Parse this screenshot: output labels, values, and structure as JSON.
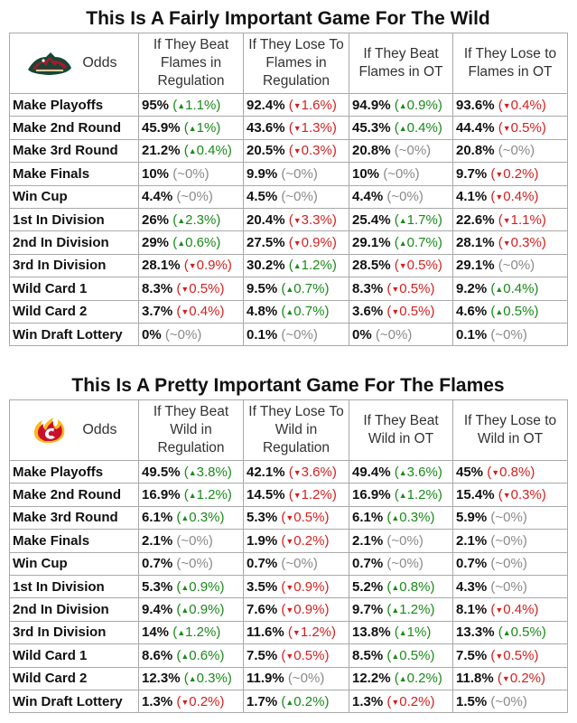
{
  "tables": [
    {
      "title": "This Is A Fairly Important Game For The Wild",
      "logo": "minnesota-wild-logo",
      "odds_label": "Odds",
      "columns": [
        "If They Beat Flames in Regulation",
        "If They Lose To Flames in Regulation",
        "If They Beat Flames in OT",
        "If They Lose to Flames in OT"
      ],
      "rows": [
        {
          "label": "Make Playoffs",
          "cells": [
            {
              "pct": "95%",
              "chg": "1.1%",
              "dir": "up"
            },
            {
              "pct": "92.4%",
              "chg": "1.6%",
              "dir": "down"
            },
            {
              "pct": "94.9%",
              "chg": "0.9%",
              "dir": "up"
            },
            {
              "pct": "93.6%",
              "chg": "0.4%",
              "dir": "down"
            }
          ]
        },
        {
          "label": "Make 2nd Round",
          "cells": [
            {
              "pct": "45.9%",
              "chg": "1%",
              "dir": "up"
            },
            {
              "pct": "43.6%",
              "chg": "1.3%",
              "dir": "down"
            },
            {
              "pct": "45.3%",
              "chg": "0.4%",
              "dir": "up"
            },
            {
              "pct": "44.4%",
              "chg": "0.5%",
              "dir": "down"
            }
          ]
        },
        {
          "label": "Make 3rd Round",
          "cells": [
            {
              "pct": "21.2%",
              "chg": "0.4%",
              "dir": "up"
            },
            {
              "pct": "20.5%",
              "chg": "0.3%",
              "dir": "down"
            },
            {
              "pct": "20.8%",
              "chg": "~0%",
              "dir": "flat"
            },
            {
              "pct": "20.8%",
              "chg": "~0%",
              "dir": "flat"
            }
          ]
        },
        {
          "label": "Make Finals",
          "cells": [
            {
              "pct": "10%",
              "chg": "~0%",
              "dir": "flat"
            },
            {
              "pct": "9.9%",
              "chg": "~0%",
              "dir": "flat"
            },
            {
              "pct": "10%",
              "chg": "~0%",
              "dir": "flat"
            },
            {
              "pct": "9.7%",
              "chg": "0.2%",
              "dir": "down"
            }
          ]
        },
        {
          "label": "Win Cup",
          "cells": [
            {
              "pct": "4.4%",
              "chg": "~0%",
              "dir": "flat"
            },
            {
              "pct": "4.5%",
              "chg": "~0%",
              "dir": "flat"
            },
            {
              "pct": "4.4%",
              "chg": "~0%",
              "dir": "flat"
            },
            {
              "pct": "4.1%",
              "chg": "0.4%",
              "dir": "down"
            }
          ]
        },
        {
          "label": "1st In Division",
          "cells": [
            {
              "pct": "26%",
              "chg": "2.3%",
              "dir": "up"
            },
            {
              "pct": "20.4%",
              "chg": "3.3%",
              "dir": "down"
            },
            {
              "pct": "25.4%",
              "chg": "1.7%",
              "dir": "up"
            },
            {
              "pct": "22.6%",
              "chg": "1.1%",
              "dir": "down"
            }
          ]
        },
        {
          "label": "2nd In Division",
          "cells": [
            {
              "pct": "29%",
              "chg": "0.6%",
              "dir": "up"
            },
            {
              "pct": "27.5%",
              "chg": "0.9%",
              "dir": "down"
            },
            {
              "pct": "29.1%",
              "chg": "0.7%",
              "dir": "up"
            },
            {
              "pct": "28.1%",
              "chg": "0.3%",
              "dir": "down"
            }
          ]
        },
        {
          "label": "3rd In Division",
          "cells": [
            {
              "pct": "28.1%",
              "chg": "0.9%",
              "dir": "down"
            },
            {
              "pct": "30.2%",
              "chg": "1.2%",
              "dir": "up"
            },
            {
              "pct": "28.5%",
              "chg": "0.5%",
              "dir": "down"
            },
            {
              "pct": "29.1%",
              "chg": "~0%",
              "dir": "flat"
            }
          ]
        },
        {
          "label": "Wild Card 1",
          "cells": [
            {
              "pct": "8.3%",
              "chg": "0.5%",
              "dir": "down"
            },
            {
              "pct": "9.5%",
              "chg": "0.7%",
              "dir": "up"
            },
            {
              "pct": "8.3%",
              "chg": "0.5%",
              "dir": "down"
            },
            {
              "pct": "9.2%",
              "chg": "0.4%",
              "dir": "up"
            }
          ]
        },
        {
          "label": "Wild Card 2",
          "cells": [
            {
              "pct": "3.7%",
              "chg": "0.4%",
              "dir": "down"
            },
            {
              "pct": "4.8%",
              "chg": "0.7%",
              "dir": "up"
            },
            {
              "pct": "3.6%",
              "chg": "0.5%",
              "dir": "down"
            },
            {
              "pct": "4.6%",
              "chg": "0.5%",
              "dir": "up"
            }
          ]
        },
        {
          "label": "Win Draft Lottery",
          "cells": [
            {
              "pct": "0%",
              "chg": "~0%",
              "dir": "flat"
            },
            {
              "pct": "0.1%",
              "chg": "~0%",
              "dir": "flat"
            },
            {
              "pct": "0%",
              "chg": "~0%",
              "dir": "flat"
            },
            {
              "pct": "0.1%",
              "chg": "~0%",
              "dir": "flat"
            }
          ]
        }
      ]
    },
    {
      "title": "This Is A Pretty Important Game For The Flames",
      "logo": "calgary-flames-logo",
      "odds_label": "Odds",
      "columns": [
        "If They Beat Wild in Regulation",
        "If They Lose To Wild in Regulation",
        "If They Beat Wild in OT",
        "If They Lose to Wild in OT"
      ],
      "rows": [
        {
          "label": "Make Playoffs",
          "cells": [
            {
              "pct": "49.5%",
              "chg": "3.8%",
              "dir": "up"
            },
            {
              "pct": "42.1%",
              "chg": "3.6%",
              "dir": "down"
            },
            {
              "pct": "49.4%",
              "chg": "3.6%",
              "dir": "up"
            },
            {
              "pct": "45%",
              "chg": "0.8%",
              "dir": "down"
            }
          ]
        },
        {
          "label": "Make 2nd Round",
          "cells": [
            {
              "pct": "16.9%",
              "chg": "1.2%",
              "dir": "up"
            },
            {
              "pct": "14.5%",
              "chg": "1.2%",
              "dir": "down"
            },
            {
              "pct": "16.9%",
              "chg": "1.2%",
              "dir": "up"
            },
            {
              "pct": "15.4%",
              "chg": "0.3%",
              "dir": "down"
            }
          ]
        },
        {
          "label": "Make 3rd Round",
          "cells": [
            {
              "pct": "6.1%",
              "chg": "0.3%",
              "dir": "up"
            },
            {
              "pct": "5.3%",
              "chg": "0.5%",
              "dir": "down"
            },
            {
              "pct": "6.1%",
              "chg": "0.3%",
              "dir": "up"
            },
            {
              "pct": "5.9%",
              "chg": "~0%",
              "dir": "flat"
            }
          ]
        },
        {
          "label": "Make Finals",
          "cells": [
            {
              "pct": "2.1%",
              "chg": "~0%",
              "dir": "flat"
            },
            {
              "pct": "1.9%",
              "chg": "0.2%",
              "dir": "down"
            },
            {
              "pct": "2.1%",
              "chg": "~0%",
              "dir": "flat"
            },
            {
              "pct": "2.1%",
              "chg": "~0%",
              "dir": "flat"
            }
          ]
        },
        {
          "label": "Win Cup",
          "cells": [
            {
              "pct": "0.7%",
              "chg": "~0%",
              "dir": "flat"
            },
            {
              "pct": "0.7%",
              "chg": "~0%",
              "dir": "flat"
            },
            {
              "pct": "0.7%",
              "chg": "~0%",
              "dir": "flat"
            },
            {
              "pct": "0.7%",
              "chg": "~0%",
              "dir": "flat"
            }
          ]
        },
        {
          "label": "1st In Division",
          "cells": [
            {
              "pct": "5.3%",
              "chg": "0.9%",
              "dir": "up"
            },
            {
              "pct": "3.5%",
              "chg": "0.9%",
              "dir": "down"
            },
            {
              "pct": "5.2%",
              "chg": "0.8%",
              "dir": "up"
            },
            {
              "pct": "4.3%",
              "chg": "~0%",
              "dir": "flat"
            }
          ]
        },
        {
          "label": "2nd In Division",
          "cells": [
            {
              "pct": "9.4%",
              "chg": "0.9%",
              "dir": "up"
            },
            {
              "pct": "7.6%",
              "chg": "0.9%",
              "dir": "down"
            },
            {
              "pct": "9.7%",
              "chg": "1.2%",
              "dir": "up"
            },
            {
              "pct": "8.1%",
              "chg": "0.4%",
              "dir": "down"
            }
          ]
        },
        {
          "label": "3rd In Division",
          "cells": [
            {
              "pct": "14%",
              "chg": "1.2%",
              "dir": "up"
            },
            {
              "pct": "11.6%",
              "chg": "1.2%",
              "dir": "down"
            },
            {
              "pct": "13.8%",
              "chg": "1%",
              "dir": "up"
            },
            {
              "pct": "13.3%",
              "chg": "0.5%",
              "dir": "up"
            }
          ]
        },
        {
          "label": "Wild Card 1",
          "cells": [
            {
              "pct": "8.6%",
              "chg": "0.6%",
              "dir": "up"
            },
            {
              "pct": "7.5%",
              "chg": "0.5%",
              "dir": "down"
            },
            {
              "pct": "8.5%",
              "chg": "0.5%",
              "dir": "up"
            },
            {
              "pct": "7.5%",
              "chg": "0.5%",
              "dir": "down"
            }
          ]
        },
        {
          "label": "Wild Card 2",
          "cells": [
            {
              "pct": "12.3%",
              "chg": "0.3%",
              "dir": "up"
            },
            {
              "pct": "11.9%",
              "chg": "~0%",
              "dir": "flat"
            },
            {
              "pct": "12.2%",
              "chg": "0.2%",
              "dir": "up"
            },
            {
              "pct": "11.8%",
              "chg": "0.2%",
              "dir": "down"
            }
          ]
        },
        {
          "label": "Win Draft Lottery",
          "cells": [
            {
              "pct": "1.3%",
              "chg": "0.2%",
              "dir": "down"
            },
            {
              "pct": "1.7%",
              "chg": "0.2%",
              "dir": "up"
            },
            {
              "pct": "1.3%",
              "chg": "0.2%",
              "dir": "down"
            },
            {
              "pct": "1.5%",
              "chg": "~0%",
              "dir": "flat"
            }
          ]
        }
      ]
    }
  ]
}
